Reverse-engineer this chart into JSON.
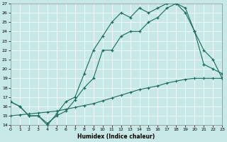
{
  "xlabel": "Humidex (Indice chaleur)",
  "xlim": [
    0,
    23
  ],
  "ylim": [
    14,
    27
  ],
  "xticks": [
    0,
    1,
    2,
    3,
    4,
    5,
    6,
    7,
    8,
    9,
    10,
    11,
    12,
    13,
    14,
    15,
    16,
    17,
    18,
    19,
    20,
    21,
    22,
    23
  ],
  "yticks": [
    14,
    15,
    16,
    17,
    18,
    19,
    20,
    21,
    22,
    23,
    24,
    25,
    26,
    27
  ],
  "bg_color": "#c8e8e8",
  "line_color": "#1a6b5a",
  "series": [
    {
      "x": [
        0,
        1,
        2,
        3,
        4,
        5,
        6,
        7,
        8,
        9,
        10,
        11,
        12,
        13,
        14,
        15,
        16,
        17,
        18,
        19,
        20,
        21,
        22,
        23
      ],
      "y": [
        16.5,
        16,
        15,
        15,
        14,
        15.2,
        16.5,
        17,
        19.5,
        22,
        23.5,
        25,
        26,
        25.5,
        26.5,
        26,
        26.5,
        27,
        27,
        26,
        24,
        20.5,
        20,
        19.5
      ]
    },
    {
      "x": [
        0,
        1,
        2,
        3,
        4,
        5,
        6,
        7,
        8,
        9,
        10,
        11,
        12,
        13,
        14,
        15,
        16,
        17,
        18,
        19,
        20,
        21,
        22,
        23
      ],
      "y": [
        16.5,
        16,
        15,
        15,
        14.2,
        15,
        15.5,
        16.7,
        18,
        19,
        22,
        22,
        23.5,
        24,
        24,
        25,
        25.5,
        26.5,
        27,
        26.5,
        24,
        22,
        21,
        19
      ]
    },
    {
      "x": [
        0,
        1,
        2,
        3,
        4,
        5,
        6,
        7,
        8,
        9,
        10,
        11,
        12,
        13,
        14,
        15,
        16,
        17,
        18,
        19,
        20,
        21,
        22,
        23
      ],
      "y": [
        15,
        15.1,
        15.2,
        15.3,
        15.4,
        15.5,
        15.7,
        15.9,
        16.1,
        16.3,
        16.6,
        16.9,
        17.2,
        17.5,
        17.8,
        18.0,
        18.2,
        18.5,
        18.7,
        18.9,
        19.0,
        19.0,
        19.0,
        19.0
      ]
    }
  ]
}
